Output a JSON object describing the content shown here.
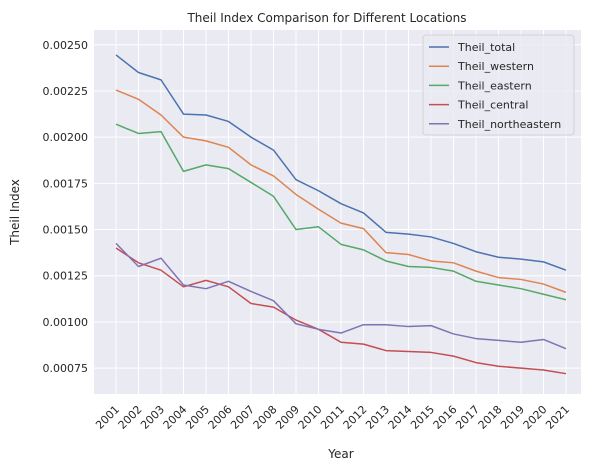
{
  "chart_data": {
    "type": "line",
    "title": "Theil Index Comparison for Different Locations",
    "xlabel": "Year",
    "ylabel": "Theil Index",
    "x": [
      "2001",
      "2002",
      "2003",
      "2004",
      "2005",
      "2006",
      "2007",
      "2008",
      "2009",
      "2010",
      "2011",
      "2012",
      "2013",
      "2014",
      "2015",
      "2016",
      "2017",
      "2018",
      "2019",
      "2020",
      "2021"
    ],
    "ylim": [
      0.00061,
      0.00258
    ],
    "yticks": [
      "0.00075",
      "0.00100",
      "0.00125",
      "0.00150",
      "0.00175",
      "0.00200",
      "0.00225",
      "0.00250"
    ],
    "grid": true,
    "legend_position": "top-right",
    "series": [
      {
        "name": "Theil_total",
        "color": "#4c72b0",
        "values": [
          0.002445,
          0.00235,
          0.00231,
          0.002125,
          0.00212,
          0.002085,
          0.002,
          0.00193,
          0.00177,
          0.00171,
          0.00164,
          0.00159,
          0.001485,
          0.001475,
          0.00146,
          0.001425,
          0.00138,
          0.00135,
          0.00134,
          0.001325,
          0.00128
        ]
      },
      {
        "name": "Theil_western",
        "color": "#dd8452",
        "values": [
          0.002255,
          0.002205,
          0.00212,
          0.002,
          0.00198,
          0.001945,
          0.00185,
          0.00179,
          0.00169,
          0.00161,
          0.001535,
          0.001505,
          0.001375,
          0.001365,
          0.00133,
          0.00132,
          0.001275,
          0.00124,
          0.00123,
          0.001205,
          0.00116
        ]
      },
      {
        "name": "Theil_eastern",
        "color": "#55a868",
        "values": [
          0.00207,
          0.00202,
          0.00203,
          0.001815,
          0.00185,
          0.00183,
          0.001755,
          0.00168,
          0.0015,
          0.001515,
          0.00142,
          0.00139,
          0.00133,
          0.0013,
          0.001295,
          0.001275,
          0.00122,
          0.0012,
          0.00118,
          0.00115,
          0.00112
        ]
      },
      {
        "name": "Theil_central",
        "color": "#c44e52",
        "values": [
          0.0014,
          0.00132,
          0.00128,
          0.00119,
          0.001225,
          0.00119,
          0.0011,
          0.00108,
          0.00101,
          0.00096,
          0.00089,
          0.00088,
          0.000845,
          0.00084,
          0.000835,
          0.000815,
          0.00078,
          0.00076,
          0.00075,
          0.00074,
          0.00072
        ]
      },
      {
        "name": "Theil_northeastern",
        "color": "#8172b3",
        "values": [
          0.001425,
          0.0013,
          0.001345,
          0.0012,
          0.00118,
          0.00122,
          0.001165,
          0.001115,
          0.00099,
          0.00096,
          0.00094,
          0.000985,
          0.000985,
          0.000975,
          0.00098,
          0.000935,
          0.00091,
          0.0009,
          0.00089,
          0.000905,
          0.000855
        ]
      }
    ]
  }
}
